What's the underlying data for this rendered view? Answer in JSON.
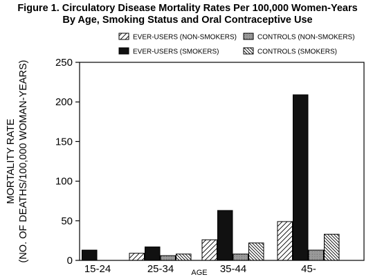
{
  "title_line1": "Figure 1.  Circulatory Disease Mortality Rates Per 100,000 Women-Years",
  "title_line2": "By Age, Smoking Status and Oral Contraceptive Use",
  "chart_data": {
    "type": "bar",
    "categories": [
      "15-24",
      "25-34",
      "35-44",
      "45-"
    ],
    "series": [
      {
        "name": "EVER-USERS (NON-SMOKERS)",
        "values": [
          0,
          9,
          26,
          49
        ],
        "pattern": "diagonal-light"
      },
      {
        "name": "EVER-USERS (SMOKERS)",
        "values": [
          13,
          17,
          63,
          209
        ],
        "pattern": "solid-black"
      },
      {
        "name": "CONTROLS (NON-SMOKERS)",
        "values": [
          0,
          6,
          8,
          13
        ],
        "pattern": "stipple-dots"
      },
      {
        "name": "CONTROLS (SMOKERS)",
        "values": [
          0,
          8,
          22,
          33
        ],
        "pattern": "diagonal-dense"
      }
    ],
    "xlabel": "AGE",
    "ylabel_line1": "MORTALITY RATE",
    "ylabel_line2": "(NO. OF DEATHS/100,000 WOMAN-YEARS)",
    "ylim": [
      0,
      250
    ],
    "yticks": [
      0,
      50,
      100,
      150,
      200,
      250
    ],
    "grid": false,
    "legend_position": "top"
  }
}
